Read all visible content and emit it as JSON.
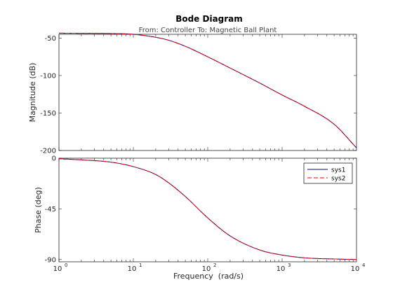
{
  "chart_data": {
    "type": "line",
    "title": "Bode Diagram",
    "subtitle": "From: Controller  To: Magnetic Ball Plant",
    "xlabel": "Frequency  (rad/s)",
    "x_scale": "log",
    "xlim": [
      1,
      10000
    ],
    "x_tick_labels": [
      {
        "value": 1,
        "base": "10",
        "exp": "0"
      },
      {
        "value": 10,
        "base": "10",
        "exp": "1"
      },
      {
        "value": 100,
        "base": "10",
        "exp": "2"
      },
      {
        "value": 1000,
        "base": "10",
        "exp": "3"
      },
      {
        "value": 10000,
        "base": "10",
        "exp": "4"
      }
    ],
    "grid": false,
    "legend_position": "top-right (phase axes)",
    "colors": {
      "sys1": "#000080",
      "sys2": "#ff0000",
      "axes": "#262626",
      "tick_text": "#262626",
      "subtitle": "#444444"
    },
    "panels": [
      {
        "ylabel": "Magnitude (dB)",
        "ylim": [
          -200,
          -45
        ],
        "y_ticks": [
          -50,
          -100,
          -150,
          -200
        ],
        "y_tick_labels": [
          "-50",
          "-100",
          "-150",
          "-200"
        ]
      },
      {
        "ylabel": "Phase (deg)",
        "ylim": [
          -92,
          0
        ],
        "y_ticks": [
          0,
          -45,
          -90
        ],
        "y_tick_labels": [
          "0",
          "-45",
          "-90"
        ]
      }
    ],
    "x": [
      1,
      2,
      5,
      10,
      20,
      30,
      50,
      100,
      200,
      500,
      1000,
      2000,
      5000,
      10000
    ],
    "series": [
      {
        "name": "sys1",
        "line_style": "solid",
        "magnitude": [
          -43.5,
          -43.7,
          -44.0,
          -45.0,
          -49.0,
          -53.0,
          -61.0,
          -75.0,
          -90.0,
          -110.0,
          -126.0,
          -141.0,
          -165.0,
          -196.5
        ],
        "phase": [
          -0.5,
          -1.5,
          -3.5,
          -7.5,
          -14.5,
          -22.0,
          -34.0,
          -53.0,
          -69.0,
          -81.5,
          -86.0,
          -88.5,
          -89.5,
          -90.0
        ]
      },
      {
        "name": "sys2",
        "line_style": "dashed",
        "magnitude": [
          -43.5,
          -43.7,
          -44.0,
          -45.0,
          -49.0,
          -53.0,
          -61.0,
          -75.0,
          -90.0,
          -110.0,
          -126.0,
          -141.0,
          -165.0,
          -196.5
        ],
        "phase": [
          -0.5,
          -1.5,
          -3.5,
          -7.5,
          -14.5,
          -22.0,
          -34.0,
          -53.0,
          -69.0,
          -81.5,
          -86.0,
          -88.5,
          -89.5,
          -90.0
        ]
      }
    ]
  }
}
